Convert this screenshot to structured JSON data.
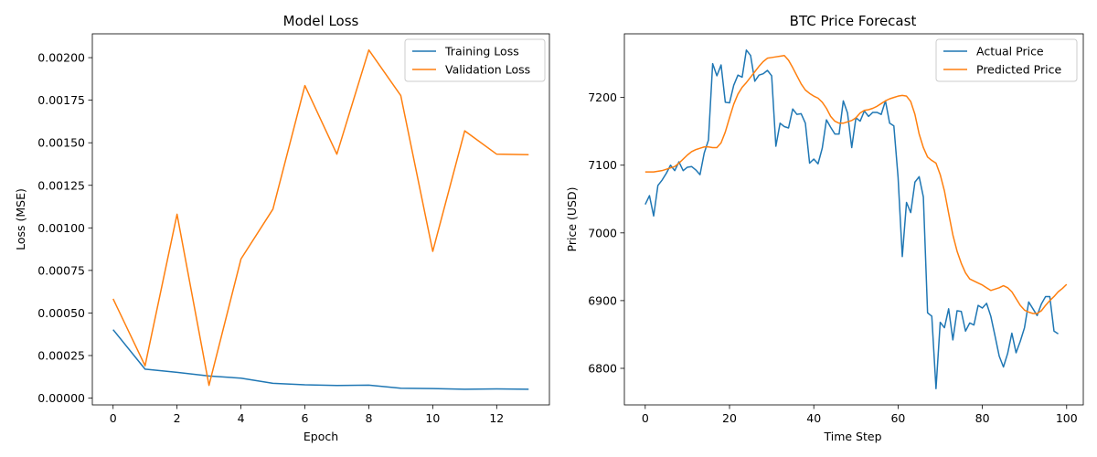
{
  "colors": {
    "blue": "#1f77b4",
    "orange": "#ff7f0e"
  },
  "chart_data": [
    {
      "type": "line",
      "title": "Model Loss",
      "xlabel": "Epoch",
      "ylabel": "Loss (MSE)",
      "xlim": [
        -0.65,
        13.65
      ],
      "ylim": [
        -4e-05,
        0.00214
      ],
      "xticks": [
        0,
        2,
        4,
        6,
        8,
        10,
        12
      ],
      "xtick_labels": [
        "0",
        "2",
        "4",
        "6",
        "8",
        "10",
        "12"
      ],
      "yticks": [
        0,
        0.00025,
        0.0005,
        0.00075,
        0.001,
        0.00125,
        0.0015,
        0.00175,
        0.002
      ],
      "ytick_labels": [
        "0.00000",
        "0.00025",
        "0.00050",
        "0.00075",
        "0.00100",
        "0.00125",
        "0.00150",
        "0.00175",
        "0.00200"
      ],
      "legend_position": "top-right",
      "grid": false,
      "x": [
        0,
        1,
        2,
        3,
        4,
        5,
        6,
        7,
        8,
        9,
        10,
        11,
        12,
        13
      ],
      "series": [
        {
          "name": "Training Loss",
          "color": "#1f77b4",
          "values": [
            0.000402,
            0.00017,
            0.000151,
            0.00013,
            0.000117,
            8.7e-05,
            7.8e-05,
            7.4e-05,
            7.6e-05,
            5.8e-05,
            5.6e-05,
            5.2e-05,
            5.4e-05,
            5.2e-05
          ]
        },
        {
          "name": "Validation Loss",
          "color": "#ff7f0e",
          "values": [
            0.000583,
            0.00019,
            0.00108,
            7.5e-05,
            0.000817,
            0.00111,
            0.001836,
            0.001433,
            0.002045,
            0.001777,
            0.000862,
            0.00157,
            0.001433,
            0.00143
          ]
        }
      ]
    },
    {
      "type": "line",
      "title": "BTC Price Forecast",
      "xlabel": "Time Step",
      "ylabel": "Price (USD)",
      "xlim": [
        -4.95,
        103.95
      ],
      "ylim": [
        6746,
        7294
      ],
      "xticks": [
        0,
        20,
        40,
        60,
        80,
        100
      ],
      "xtick_labels": [
        "0",
        "20",
        "40",
        "60",
        "80",
        "100"
      ],
      "yticks": [
        6800,
        6900,
        7000,
        7100,
        7200
      ],
      "ytick_labels": [
        "6800",
        "6900",
        "7000",
        "7100",
        "7200"
      ],
      "legend_position": "top-right",
      "grid": false,
      "series": [
        {
          "name": "Actual Price",
          "color": "#1f77b4",
          "values": [
            7042,
            7055,
            7025,
            7070,
            7078,
            7088,
            7100,
            7092,
            7105,
            7092,
            7097,
            7098,
            7093,
            7086,
            7118,
            7137,
            7250,
            7232,
            7248,
            7193,
            7192,
            7218,
            7233,
            7230,
            7270,
            7262,
            7224,
            7233,
            7235,
            7240,
            7232,
            7128,
            7162,
            7157,
            7155,
            7183,
            7175,
            7176,
            7162,
            7103,
            7109,
            7102,
            7125,
            7167,
            7156,
            7146,
            7146,
            7195,
            7177,
            7126,
            7170,
            7165,
            7180,
            7172,
            7178,
            7178,
            7175,
            7195,
            7162,
            7158,
            7082,
            6965,
            7045,
            7030,
            7075,
            7083,
            7053,
            6882,
            6877,
            6770,
            6868,
            6860,
            6888,
            6842,
            6885,
            6884,
            6855,
            6867,
            6864,
            6893,
            6889,
            6896,
            6877,
            6848,
            6818,
            6802,
            6822,
            6852,
            6823,
            6840,
            6860,
            6898,
            6888,
            6878,
            6895,
            6906,
            6906,
            6855,
            6851
          ]
        },
        {
          "name": "Predicted Price",
          "color": "#ff7f0e",
          "values": [
            7090,
            7090,
            7090,
            7091,
            7092,
            7094,
            7096,
            7098,
            7103,
            7109,
            7115,
            7120,
            7123,
            7125,
            7127,
            7127,
            7126,
            7126,
            7133,
            7149,
            7170,
            7190,
            7205,
            7215,
            7222,
            7230,
            7238,
            7246,
            7253,
            7258,
            7259,
            7260,
            7261,
            7262,
            7255,
            7244,
            7232,
            7220,
            7211,
            7206,
            7202,
            7199,
            7193,
            7184,
            7172,
            7165,
            7162,
            7162,
            7164,
            7166,
            7170,
            7177,
            7181,
            7182,
            7184,
            7187,
            7191,
            7195,
            7198,
            7200,
            7202,
            7203,
            7202,
            7194,
            7175,
            7146,
            7126,
            7112,
            7107,
            7103,
            7086,
            7062,
            7029,
            6997,
            6973,
            6955,
            6941,
            6932,
            6929,
            6926,
            6923,
            6919,
            6915,
            6917,
            6919,
            6922,
            6919,
            6913,
            6903,
            6893,
            6886,
            6883,
            6881,
            6881,
            6885,
            6893,
            6900,
            6906,
            6913,
            6918,
            6924
          ]
        }
      ]
    }
  ]
}
